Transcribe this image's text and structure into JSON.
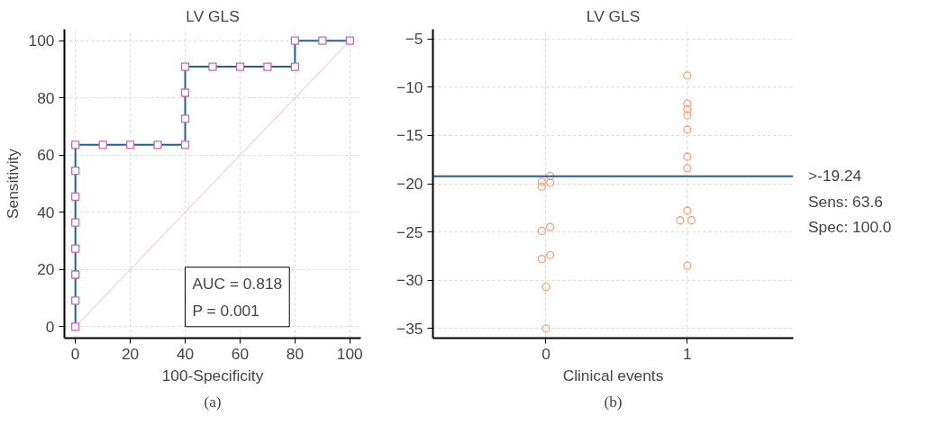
{
  "chart_data": [
    {
      "type": "line",
      "title": "LV GLS",
      "xlabel": "100-Specificity",
      "ylabel": "Sensitivity",
      "xlim": [
        -4,
        104
      ],
      "ylim": [
        -4,
        104
      ],
      "xticks": [
        0,
        20,
        40,
        60,
        80,
        100
      ],
      "yticks": [
        0,
        20,
        40,
        60,
        80,
        100
      ],
      "grid": true,
      "annotations": [
        "AUC = 0.818",
        "P = 0.001",
        "(a)"
      ],
      "series": [
        {
          "color": "#1f5fa0",
          "marker": "square",
          "x": [
            0,
            0,
            0,
            0,
            0,
            0,
            0,
            0,
            10,
            20,
            30,
            40,
            40,
            40,
            40,
            50,
            60,
            70,
            80,
            80,
            90,
            100
          ],
          "values": [
            0,
            9.1,
            18.2,
            27.3,
            36.4,
            45.5,
            54.5,
            63.6,
            63.6,
            63.6,
            63.6,
            63.6,
            72.7,
            81.8,
            90.9,
            90.9,
            90.9,
            90.9,
            90.9,
            100,
            100,
            100
          ]
        },
        {
          "color": "#f2b6c6",
          "marker": "none",
          "x": [
            0,
            100
          ],
          "values": [
            0,
            100
          ]
        }
      ]
    },
    {
      "type": "scatter",
      "title": "LV GLS",
      "xlabel": "Clinical events",
      "xlim": [
        -0.8,
        1.75
      ],
      "ylim": [
        -36,
        -4
      ],
      "xticks": [
        0,
        1
      ],
      "yticks": [
        -35,
        -30,
        -25,
        -20,
        -15,
        -10,
        -5
      ],
      "grid": true,
      "marker": "circle",
      "ref_lines": [
        {
          "axis": "y",
          "value": -19.24,
          "label": ">-19.24",
          "color": "#1f5fa0"
        }
      ],
      "annotations": [
        "Sens: 63.6",
        "Spec: 100.0",
        "(b)"
      ],
      "series": [
        {
          "color": "#f4a070",
          "x": [
            0.03,
            -0.03,
            0.03,
            -0.03,
            0.03,
            -0.03,
            0.03,
            -0.03,
            0,
            0,
            1,
            1,
            1,
            1,
            1,
            1,
            1,
            1,
            0.95,
            1.03,
            1
          ],
          "values": [
            -19.2,
            -19.8,
            -19.9,
            -20.3,
            -24.5,
            -24.9,
            -27.4,
            -27.8,
            -30.7,
            -35.0,
            -8.8,
            -11.7,
            -12.3,
            -12.9,
            -14.4,
            -17.2,
            -18.4,
            -22.8,
            -23.8,
            -23.8,
            -28.5
          ]
        }
      ]
    }
  ]
}
